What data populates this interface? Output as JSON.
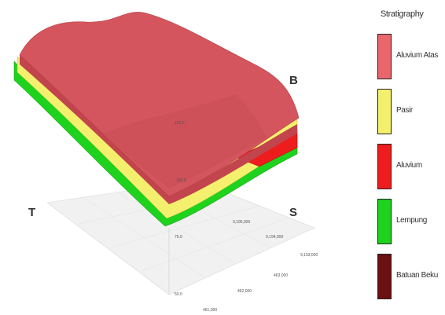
{
  "legend": {
    "title": "Stratigraphy",
    "items": [
      {
        "label": "Aluvium Atas",
        "color": "#e8666c"
      },
      {
        "label": "Pasir",
        "color": "#f4f06e"
      },
      {
        "label": "Aluvium",
        "color": "#ee1d1d"
      },
      {
        "label": "Lempung",
        "color": "#1ed21e"
      },
      {
        "label": "Batuan Beku",
        "color": "#6a0f12"
      }
    ]
  },
  "directions": {
    "b": "B",
    "s": "S",
    "t": "T"
  },
  "surface_labels": {
    "upper": "150.0",
    "lower": "100.0"
  },
  "elevation_ticks": [
    "75.0",
    "50.0"
  ],
  "axis_ticks_s": [
    "9,195,000",
    "9,194,000",
    "9,193,000"
  ],
  "axis_ticks_t": [
    "463,000",
    "462,000",
    "461,000"
  ],
  "colors": {
    "top": "#d4555d",
    "side": "#c2444c"
  }
}
